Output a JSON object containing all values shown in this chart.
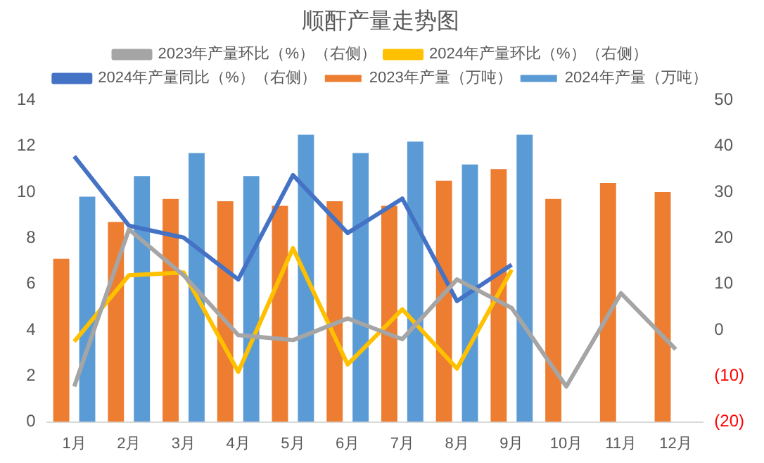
{
  "chart_data": {
    "type": "bar",
    "title": "顺酐产量走势图",
    "categories": [
      "1月",
      "2月",
      "3月",
      "4月",
      "5月",
      "6月",
      "7月",
      "8月",
      "9月",
      "10月",
      "11月",
      "12月"
    ],
    "series": [
      {
        "name": "2023年产量（万吨）",
        "color": "#ed7d31",
        "values": [
          7.1,
          8.7,
          9.7,
          9.6,
          9.4,
          9.6,
          9.4,
          10.5,
          11.0,
          9.7,
          10.4,
          10.0
        ]
      },
      {
        "name": "2024年产量（万吨）",
        "color": "#5b9bd5",
        "values": [
          9.8,
          10.7,
          11.7,
          10.7,
          12.5,
          11.7,
          12.2,
          11.2,
          12.5,
          null,
          null,
          null
        ]
      },
      {
        "name": "2023年产量环比（%）（右侧）",
        "type": "line",
        "axis": "y2",
        "color": "#a5a5a5",
        "values": [
          -12.3,
          21.9,
          11.9,
          -1.1,
          -2.2,
          2.5,
          -2.0,
          11.0,
          4.8,
          -12.3,
          8.0,
          -4.2
        ]
      },
      {
        "name": "2024年产量环比（%）（右侧）",
        "type": "line",
        "axis": "y2",
        "color": "#ffc000",
        "values": [
          -2.5,
          11.9,
          12.5,
          -9.1,
          17.8,
          -7.5,
          4.5,
          -8.4,
          13.1,
          null,
          null,
          null
        ]
      },
      {
        "name": "2024年产量同比（%）（右侧）",
        "type": "line",
        "axis": "y2",
        "color": "#4472c4",
        "values": [
          37.8,
          22.7,
          20.1,
          11.0,
          33.7,
          21.1,
          28.6,
          6.3,
          14.2,
          null,
          null,
          null
        ]
      }
    ],
    "ylim": [
      0,
      14
    ],
    "yticks": [
      0,
      2,
      4,
      6,
      8,
      10,
      12,
      14
    ],
    "y2lim": [
      -20,
      50
    ],
    "y2ticks": [
      {
        "value": -20,
        "label": "(20)"
      },
      {
        "value": -10,
        "label": "(10)"
      },
      0,
      10,
      20,
      30,
      40,
      50
    ],
    "grid": false,
    "legend": "top",
    "marker": "none",
    "line_style": "solid"
  }
}
